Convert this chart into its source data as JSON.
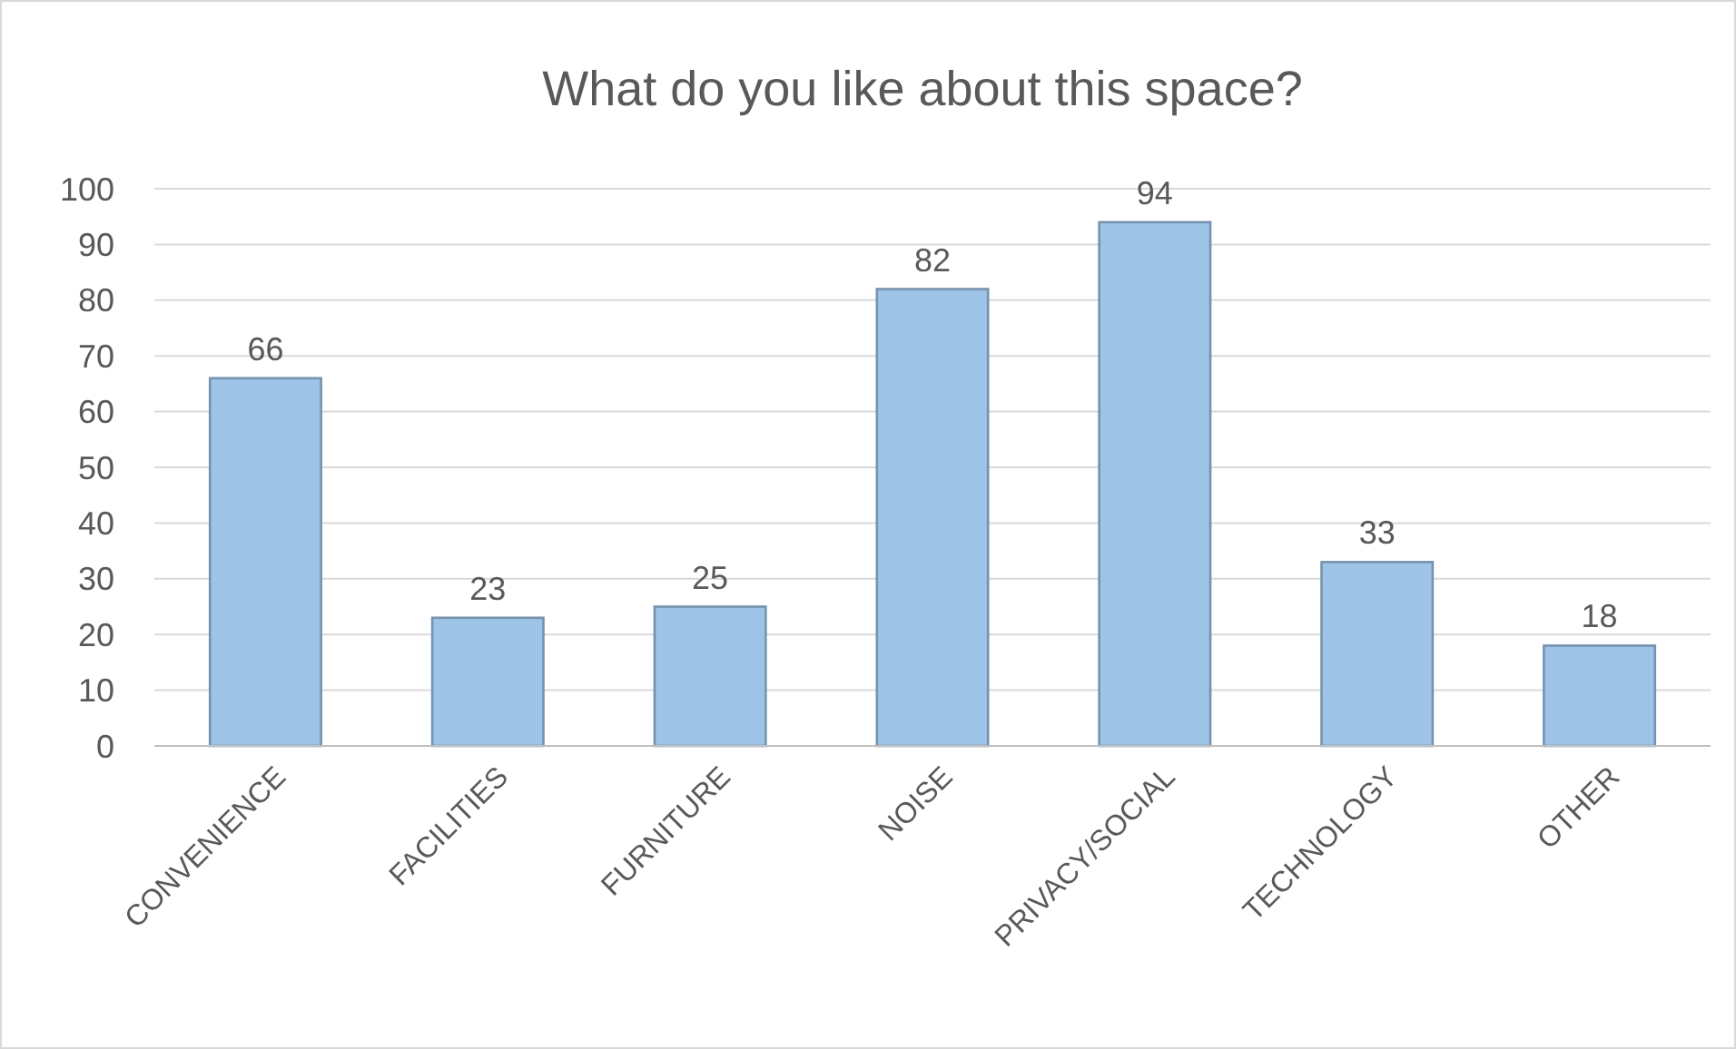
{
  "chart_data": {
    "type": "bar",
    "title": "What do you like about this space?",
    "categories": [
      "CONVENIENCE",
      "FACILITIES",
      "FURNITURE",
      "NOISE",
      "PRIVACY/SOCIAL",
      "TECHNOLOGY",
      "OTHER"
    ],
    "values": [
      66,
      23,
      25,
      82,
      94,
      33,
      18
    ],
    "color": "#9dc3e6",
    "ylim": [
      0,
      100
    ],
    "yticks": [
      0,
      10,
      20,
      30,
      40,
      50,
      60,
      70,
      80,
      90,
      100
    ],
    "grid": "y",
    "data_labels": true
  }
}
